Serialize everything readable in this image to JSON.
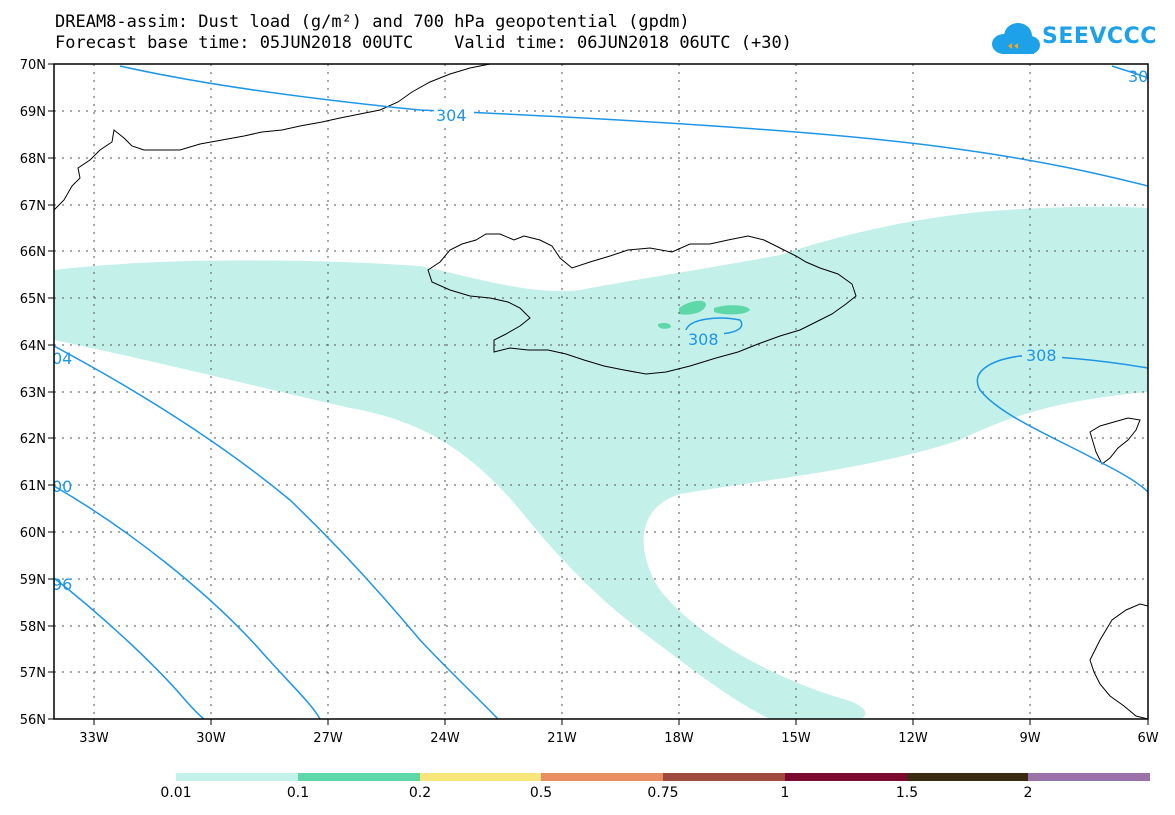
{
  "header": {
    "title_line1": "DREAM8-assim: Dust load (g/m²) and 700 hPa geopotential (gpdm)",
    "title_line2": "Forecast base time: 05JUN2018 00UTC    Valid time: 06JUN2018 06UTC (+30)"
  },
  "logo": {
    "text": "SEEVCCC",
    "icon": "cloud-logo-icon",
    "color": "#1da1e8"
  },
  "map": {
    "lat_labels": [
      "70N",
      "69N",
      "68N",
      "67N",
      "66N",
      "65N",
      "64N",
      "63N",
      "62N",
      "61N",
      "60N",
      "59N",
      "58N",
      "57N",
      "56N"
    ],
    "lon_labels": [
      "33W",
      "30W",
      "27W",
      "24W",
      "21W",
      "18W",
      "15W",
      "12W",
      "9W",
      "6W"
    ],
    "contour_labels": [
      "304",
      "308",
      "308",
      "30",
      "04",
      "00",
      "96"
    ],
    "contour_color": "#1e96e6",
    "dust_colors": {
      "low": "#c4f0ea",
      "mid": "#5ed8a8"
    }
  },
  "colorbar": {
    "labels": [
      "0.01",
      "0.1",
      "0.2",
      "0.5",
      "0.75",
      "1",
      "1.5",
      "2"
    ],
    "colors": [
      "#c4f0ea",
      "#5ed8a8",
      "#f8e67a",
      "#e88e62",
      "#9e4a3e",
      "#7c0a2e",
      "#3a2a12",
      "#9a72a8"
    ]
  }
}
